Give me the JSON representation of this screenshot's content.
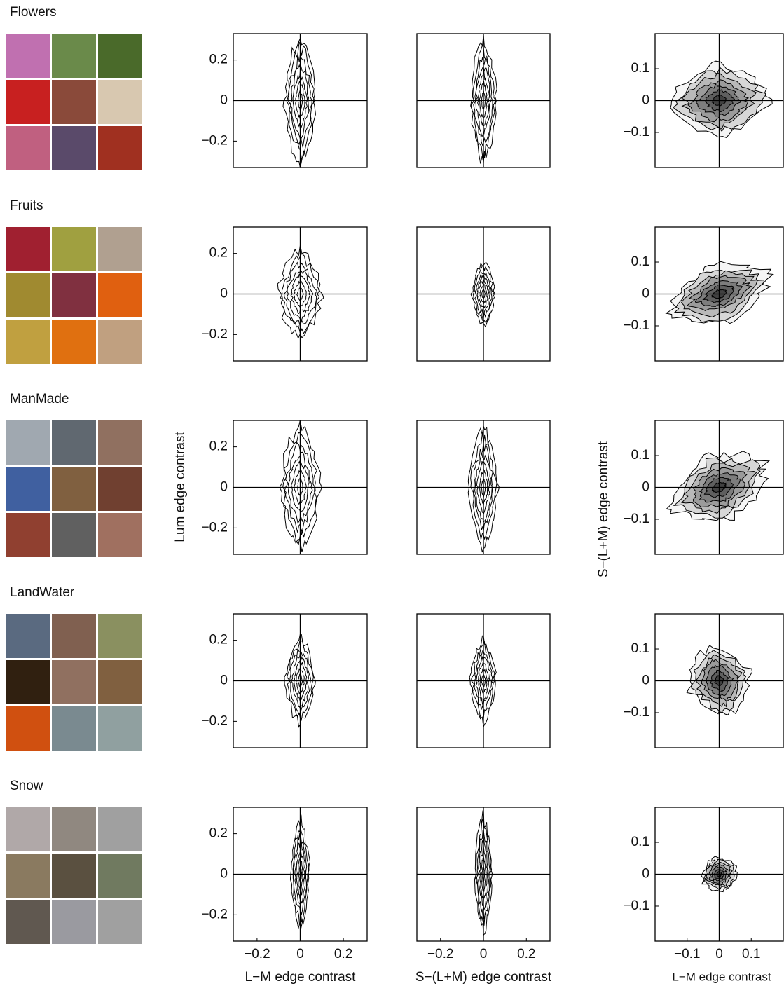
{
  "rows": [
    "Flowers",
    "Fruits",
    "ManMade",
    "LandWater",
    "Snow"
  ],
  "chart_data": [
    {
      "type": "contour",
      "xlabel": "L−M edge contrast",
      "ylabel": "Lum edge contrast",
      "xlim": [
        -0.31,
        0.31
      ],
      "ylim": [
        -0.33,
        0.33
      ],
      "xticks": [
        {
          "value": -0.2,
          "label": "−0.2"
        },
        0,
        0.2
      ],
      "yticks": [
        0.2,
        0,
        {
          "value": -0.2,
          "label": "−0.2"
        }
      ]
    },
    {
      "type": "contour",
      "xlabel": "S−(L+M) edge contrast",
      "xlim": [
        -0.31,
        0.31
      ],
      "ylim": [
        -0.33,
        0.33
      ],
      "xticks": [
        {
          "value": -0.2,
          "label": "−0.2"
        },
        0,
        0.2
      ]
    },
    {
      "type": "contour",
      "xlabel": "L−M edge contrast",
      "ylabel": "S−(L+M) edge contrast",
      "xlim": [
        -0.2,
        0.2
      ],
      "ylim": [
        -0.21,
        0.21
      ],
      "xticks": [
        {
          "value": -0.1,
          "label": "−0.1"
        },
        0,
        0.1
      ],
      "yticks": [
        0.1,
        0,
        {
          "value": -0.1,
          "label": "−0.1"
        }
      ]
    }
  ]
}
